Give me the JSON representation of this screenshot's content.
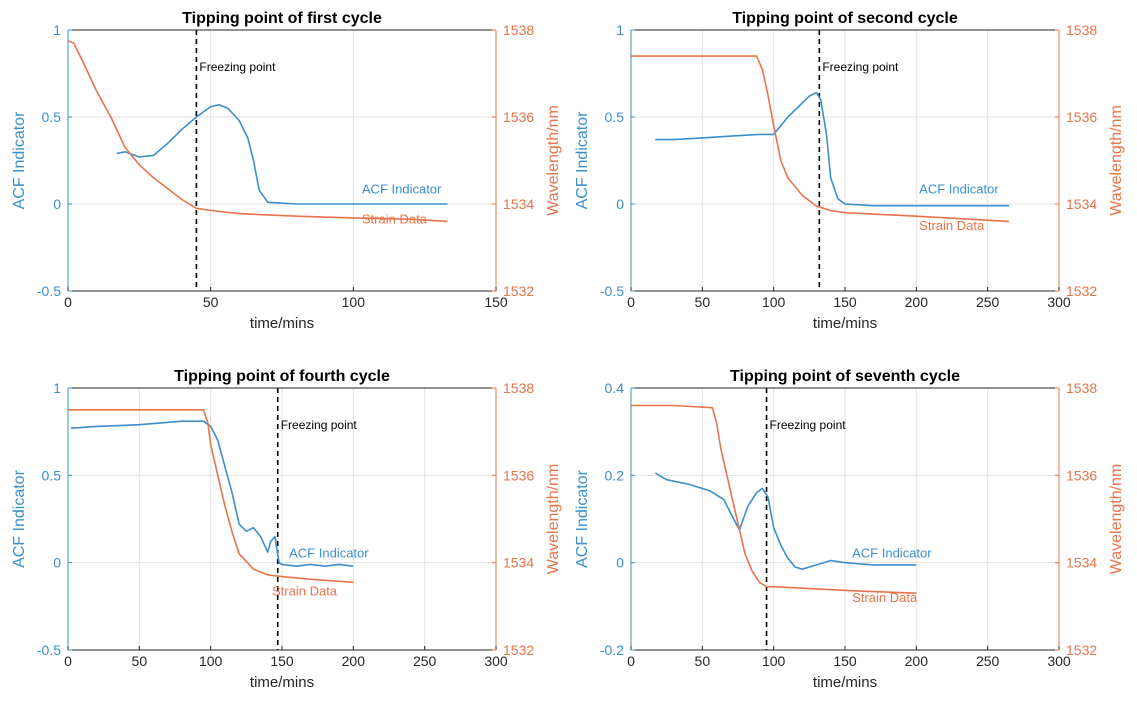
{
  "colors": {
    "acf": "#3B8FCB",
    "strain": "#E8744A",
    "grid": "#E2E2E2",
    "axis": "#262626"
  },
  "chart_data": [
    {
      "type": "line",
      "title": "Tipping point of first cycle",
      "xlabel": "time/mins",
      "ylabel": "ACF Indicator",
      "ylabel2": "Wavelength/nm",
      "xlim": [
        0,
        150
      ],
      "ylim": [
        -0.5,
        1
      ],
      "y2lim": [
        1532,
        1538
      ],
      "xticks": [
        0,
        50,
        100,
        150
      ],
      "yticks": [
        -0.5,
        0,
        0.5,
        1
      ],
      "y2ticks": [
        1532,
        1534,
        1536,
        1538
      ],
      "grid": true,
      "annotation": {
        "text": "Freezing point",
        "x": 45
      },
      "series": [
        {
          "name": "ACF Indicator",
          "axis": "left",
          "label_at": [
            103,
            0.06
          ],
          "x": [
            17,
            20,
            25,
            30,
            35,
            40,
            45,
            50,
            53,
            56,
            60,
            63,
            65,
            67,
            70,
            80,
            90,
            100,
            110,
            120,
            133
          ],
          "y": [
            0.29,
            0.3,
            0.27,
            0.28,
            0.35,
            0.43,
            0.5,
            0.56,
            0.57,
            0.55,
            0.48,
            0.38,
            0.25,
            0.08,
            0.01,
            0.0,
            0.0,
            0.0,
            0.0,
            0.0,
            0.0
          ]
        },
        {
          "name": "Strain Data",
          "axis": "right",
          "label_at": [
            103,
            1533.55
          ],
          "x": [
            0,
            2,
            5,
            10,
            15,
            20,
            25,
            30,
            35,
            40,
            45,
            50,
            60,
            80,
            100,
            120,
            133
          ],
          "y": [
            1537.75,
            1537.7,
            1537.3,
            1536.6,
            1536.0,
            1535.3,
            1534.9,
            1534.6,
            1534.35,
            1534.1,
            1533.9,
            1533.85,
            1533.78,
            1533.72,
            1533.68,
            1533.65,
            1533.6
          ]
        }
      ]
    },
    {
      "type": "line",
      "title": "Tipping point of second cycle",
      "xlabel": "time/mins",
      "ylabel": "ACF Indicator",
      "ylabel2": "Wavelength/nm",
      "xlim": [
        0,
        300
      ],
      "ylim": [
        -0.5,
        1
      ],
      "y2lim": [
        1532,
        1538
      ],
      "xticks": [
        0,
        50,
        100,
        150,
        200,
        250,
        300
      ],
      "yticks": [
        -0.5,
        0,
        0.5,
        1
      ],
      "y2ticks": [
        1532,
        1534,
        1536,
        1538
      ],
      "grid": true,
      "annotation": {
        "text": "Freezing point",
        "x": 132
      },
      "series": [
        {
          "name": "ACF Indicator",
          "axis": "left",
          "label_at": [
            202,
            0.06
          ],
          "x": [
            17,
            30,
            50,
            70,
            90,
            100,
            105,
            110,
            120,
            125,
            130,
            133,
            137,
            140,
            145,
            150,
            170,
            200,
            230,
            265
          ],
          "y": [
            0.37,
            0.37,
            0.38,
            0.39,
            0.4,
            0.4,
            0.45,
            0.5,
            0.58,
            0.62,
            0.64,
            0.6,
            0.4,
            0.15,
            0.03,
            0.0,
            -0.01,
            -0.01,
            -0.01,
            -0.01
          ]
        },
        {
          "name": "Strain Data",
          "axis": "right",
          "label_at": [
            202,
            1533.4
          ],
          "x": [
            0,
            30,
            60,
            88,
            92,
            96,
            100,
            105,
            110,
            120,
            130,
            140,
            150,
            200,
            265
          ],
          "y": [
            1537.4,
            1537.4,
            1537.4,
            1537.4,
            1537.1,
            1536.5,
            1535.8,
            1535.0,
            1534.6,
            1534.2,
            1533.95,
            1533.85,
            1533.8,
            1533.72,
            1533.6
          ]
        }
      ]
    },
    {
      "type": "line",
      "title": "Tipping point of fourth cycle",
      "xlabel": "time/mins",
      "ylabel": "ACF Indicator",
      "ylabel2": "Wavelength/nm",
      "xlim": [
        0,
        300
      ],
      "ylim": [
        -0.5,
        1
      ],
      "y2lim": [
        1532,
        1538
      ],
      "xticks": [
        0,
        50,
        100,
        150,
        200,
        250,
        300
      ],
      "yticks": [
        -0.5,
        0,
        0.5,
        1
      ],
      "y2ticks": [
        1532,
        1534,
        1536,
        1538
      ],
      "grid": true,
      "annotation": {
        "text": "Freezing point",
        "x": 147
      },
      "series": [
        {
          "name": "ACF Indicator",
          "axis": "left",
          "label_at": [
            155,
            0.03
          ],
          "x": [
            2,
            20,
            50,
            80,
            95,
            100,
            105,
            110,
            115,
            120,
            125,
            130,
            135,
            140,
            142,
            145,
            148,
            150,
            160,
            170,
            180,
            190,
            200
          ],
          "y": [
            0.77,
            0.78,
            0.79,
            0.81,
            0.81,
            0.78,
            0.7,
            0.55,
            0.4,
            0.22,
            0.18,
            0.2,
            0.15,
            0.06,
            0.12,
            0.15,
            0.0,
            -0.01,
            -0.02,
            -0.01,
            -0.02,
            -0.01,
            -0.02
          ]
        },
        {
          "name": "Strain Data",
          "axis": "right",
          "label_at": [
            143,
            1533.25
          ],
          "x": [
            0,
            30,
            60,
            95,
            98,
            100,
            105,
            110,
            115,
            120,
            130,
            140,
            150,
            170,
            200
          ],
          "y": [
            1537.5,
            1537.5,
            1537.5,
            1537.5,
            1537.2,
            1536.7,
            1536.0,
            1535.3,
            1534.7,
            1534.2,
            1533.85,
            1533.72,
            1533.68,
            1533.62,
            1533.55
          ]
        }
      ]
    },
    {
      "type": "line",
      "title": "Tipping point of seventh cycle",
      "xlabel": "time/mins",
      "ylabel": "ACF Indicator",
      "ylabel2": "Wavelength/nm",
      "xlim": [
        0,
        300
      ],
      "ylim": [
        -0.2,
        0.4
      ],
      "y2lim": [
        1532,
        1538
      ],
      "xticks": [
        0,
        50,
        100,
        150,
        200,
        250,
        300
      ],
      "yticks": [
        -0.2,
        0,
        0.2,
        0.4
      ],
      "y2ticks": [
        1532,
        1534,
        1536,
        1538
      ],
      "grid": true,
      "annotation": {
        "text": "Freezing point",
        "x": 95
      },
      "series": [
        {
          "name": "ACF Indicator",
          "axis": "left",
          "label_at": [
            155,
            0.012
          ],
          "x": [
            17,
            25,
            40,
            55,
            65,
            72,
            76,
            82,
            88,
            92,
            96,
            100,
            105,
            110,
            115,
            120,
            130,
            140,
            150,
            170,
            200
          ],
          "y": [
            0.205,
            0.19,
            0.18,
            0.165,
            0.145,
            0.1,
            0.075,
            0.13,
            0.16,
            0.17,
            0.15,
            0.08,
            0.04,
            0.01,
            -0.01,
            -0.015,
            -0.005,
            0.005,
            0.0,
            -0.005,
            -0.005
          ]
        },
        {
          "name": "Strain Data",
          "axis": "right",
          "label_at": [
            155,
            1533.1
          ],
          "x": [
            0,
            30,
            57,
            60,
            63,
            70,
            75,
            80,
            85,
            90,
            95,
            100,
            130,
            160,
            200
          ],
          "y": [
            1537.6,
            1537.6,
            1537.55,
            1537.2,
            1536.6,
            1535.6,
            1534.9,
            1534.2,
            1533.8,
            1533.55,
            1533.45,
            1533.45,
            1533.4,
            1533.35,
            1533.3
          ]
        }
      ]
    }
  ]
}
